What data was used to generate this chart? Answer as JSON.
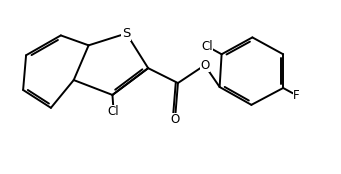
{
  "bg_color": "#ffffff",
  "line_color": "#000000",
  "line_width": 1.4,
  "font_size": 8.5,
  "figsize": [
    3.41,
    1.74
  ],
  "dpi": 100,
  "xlim": [
    0,
    10
  ],
  "ylim": [
    0,
    5.1
  ]
}
